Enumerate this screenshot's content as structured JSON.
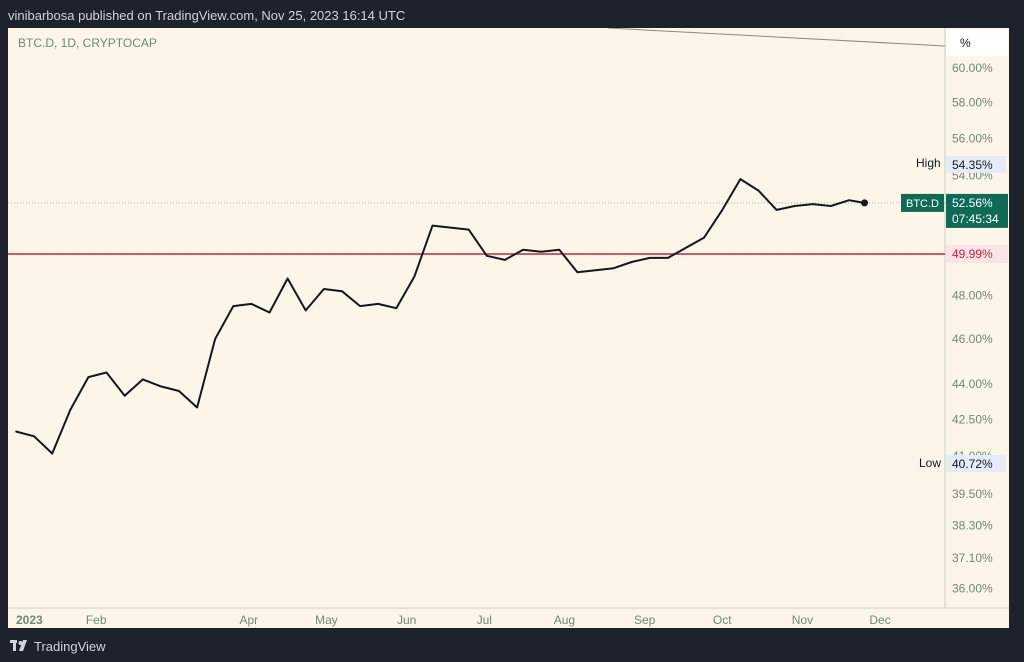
{
  "header": {
    "text": "vinibarbosa published on TradingView.com, Nov 25, 2023 16:14 UTC"
  },
  "chart": {
    "symbol_label": "BTC.D, 1D, CRYPTOCAP",
    "unit_label": "%",
    "price_axis_labels": [
      "60.00%",
      "58.00%",
      "56.00%",
      "54.00%",
      "48.00%",
      "46.00%",
      "44.00%",
      "42.50%",
      "41.00%",
      "39.50%",
      "38.30%",
      "37.10%",
      "36.00%"
    ],
    "time_axis_labels": [
      "2023",
      "Feb",
      "Apr",
      "May",
      "Jun",
      "Jul",
      "Aug",
      "Sep",
      "Oct",
      "Nov",
      "Dec"
    ],
    "high": {
      "label": "High",
      "value": "54.35%"
    },
    "low": {
      "label": "Low",
      "value": "40.72%"
    },
    "last": {
      "symbol": "BTC.D",
      "value": "52.56%",
      "countdown": "07:45:34"
    },
    "hline": {
      "value": "49.99%"
    },
    "colors": {
      "line": "#131722",
      "hline": "#c8243f",
      "last_badge": "#0f6b55",
      "background": "#fdf6e8",
      "axis_text": "#6a8a78"
    }
  },
  "chart_data": {
    "type": "line",
    "title": "BTC.D, 1D, CRYPTOCAP",
    "xlabel": "",
    "ylabel": "%",
    "x": [
      "2023-01-01",
      "2023-01-08",
      "2023-01-15",
      "2023-01-22",
      "2023-01-29",
      "2023-02-05",
      "2023-02-12",
      "2023-02-19",
      "2023-02-26",
      "2023-03-05",
      "2023-03-12",
      "2023-03-19",
      "2023-03-26",
      "2023-04-02",
      "2023-04-09",
      "2023-04-16",
      "2023-04-23",
      "2023-04-30",
      "2023-05-07",
      "2023-05-14",
      "2023-05-21",
      "2023-05-28",
      "2023-06-04",
      "2023-06-11",
      "2023-06-18",
      "2023-06-25",
      "2023-07-02",
      "2023-07-09",
      "2023-07-16",
      "2023-07-23",
      "2023-07-30",
      "2023-08-06",
      "2023-08-13",
      "2023-08-20",
      "2023-08-27",
      "2023-09-03",
      "2023-09-10",
      "2023-09-17",
      "2023-09-24",
      "2023-10-01",
      "2023-10-08",
      "2023-10-15",
      "2023-10-22",
      "2023-10-29",
      "2023-11-05",
      "2023-11-12",
      "2023-11-19",
      "2023-11-25"
    ],
    "series": [
      {
        "values": [
          42.0,
          41.8,
          41.1,
          42.9,
          44.3,
          44.5,
          43.5,
          44.2,
          43.9,
          43.7,
          43.0,
          46.0,
          47.5,
          47.6,
          47.2,
          48.8,
          47.3,
          48.3,
          48.2,
          47.5,
          47.6,
          47.4,
          48.9,
          51.4,
          51.3,
          51.2,
          49.9,
          49.7,
          50.2,
          50.1,
          50.2,
          49.1,
          49.2,
          49.3,
          49.6,
          49.8,
          49.8,
          50.3,
          50.8,
          52.2,
          53.8,
          53.2,
          52.2,
          52.4,
          52.5,
          52.4,
          52.7,
          52.56
        ]
      }
    ],
    "ylim": [
      36.0,
      62.0
    ],
    "y_scale": "log",
    "high": 54.35,
    "low": 40.72,
    "horizontal_line": 49.99,
    "last_value": 52.56,
    "grid": false,
    "legend": "none"
  },
  "footer": {
    "brand": "TradingView"
  }
}
